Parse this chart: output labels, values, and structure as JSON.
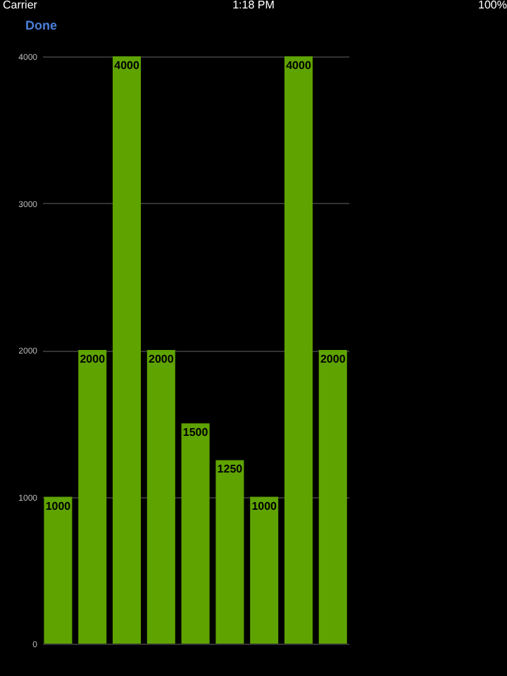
{
  "chart_data": {
    "type": "bar",
    "categories": [
      null,
      null,
      null,
      null,
      null,
      null,
      null,
      null,
      null
    ],
    "values": [
      1000,
      2000,
      4000,
      2000,
      1500,
      1250,
      1000,
      4000,
      2000
    ],
    "color": "#5fa300",
    "ylim": [
      0,
      4000
    ],
    "yticks": [
      0,
      1000,
      2000,
      3000,
      4000
    ],
    "grid": "y",
    "data_labels": true,
    "tick_labels": "y",
    "annotations": [
      "Carrier",
      "1:18 PM",
      "100%",
      "Done"
    ]
  }
}
